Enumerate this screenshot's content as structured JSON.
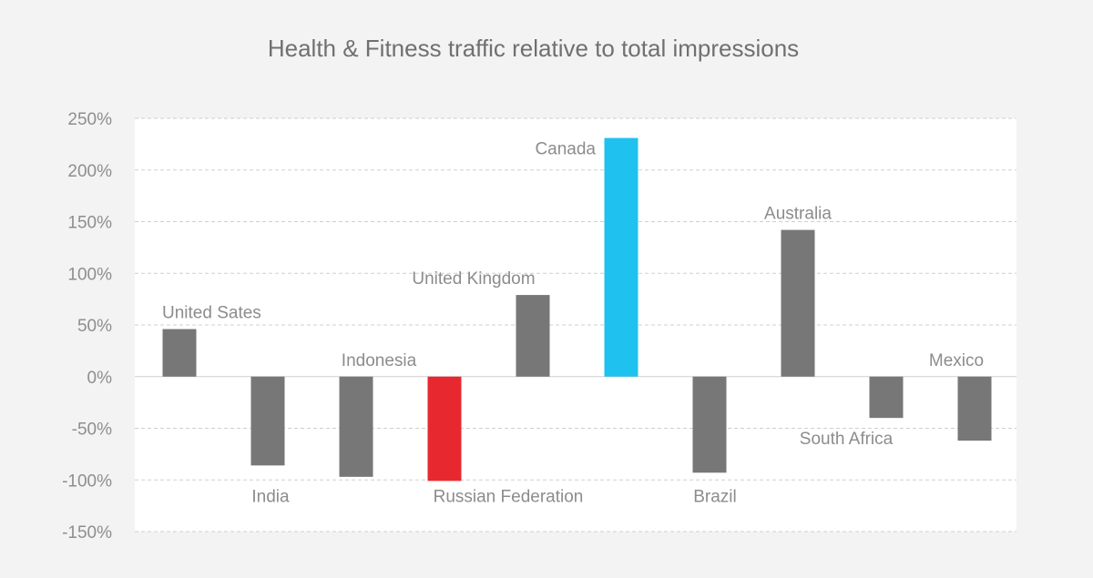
{
  "chart_data": {
    "type": "bar",
    "title": "Health & Fitness traffic relative to total impressions",
    "xlabel": "",
    "ylabel": "",
    "ylim": [
      -150,
      250
    ],
    "yticks": [
      250,
      200,
      150,
      100,
      50,
      0,
      -50,
      -100,
      -150
    ],
    "ytick_suffix": "%",
    "grid": true,
    "categories": [
      "United Sates",
      "India",
      "Indonesia",
      "Russian Federation",
      "United Kingdom",
      "Canada",
      "Brazil",
      "Australia",
      "South Africa",
      "Mexico"
    ],
    "values": [
      46,
      -86,
      -97,
      -101,
      79,
      231,
      -93,
      142,
      -40,
      -62
    ],
    "highlight_colors": {
      "Russian Federation": "#e8282f",
      "Canada": "#1fc2ee"
    },
    "default_color": "#777777"
  }
}
